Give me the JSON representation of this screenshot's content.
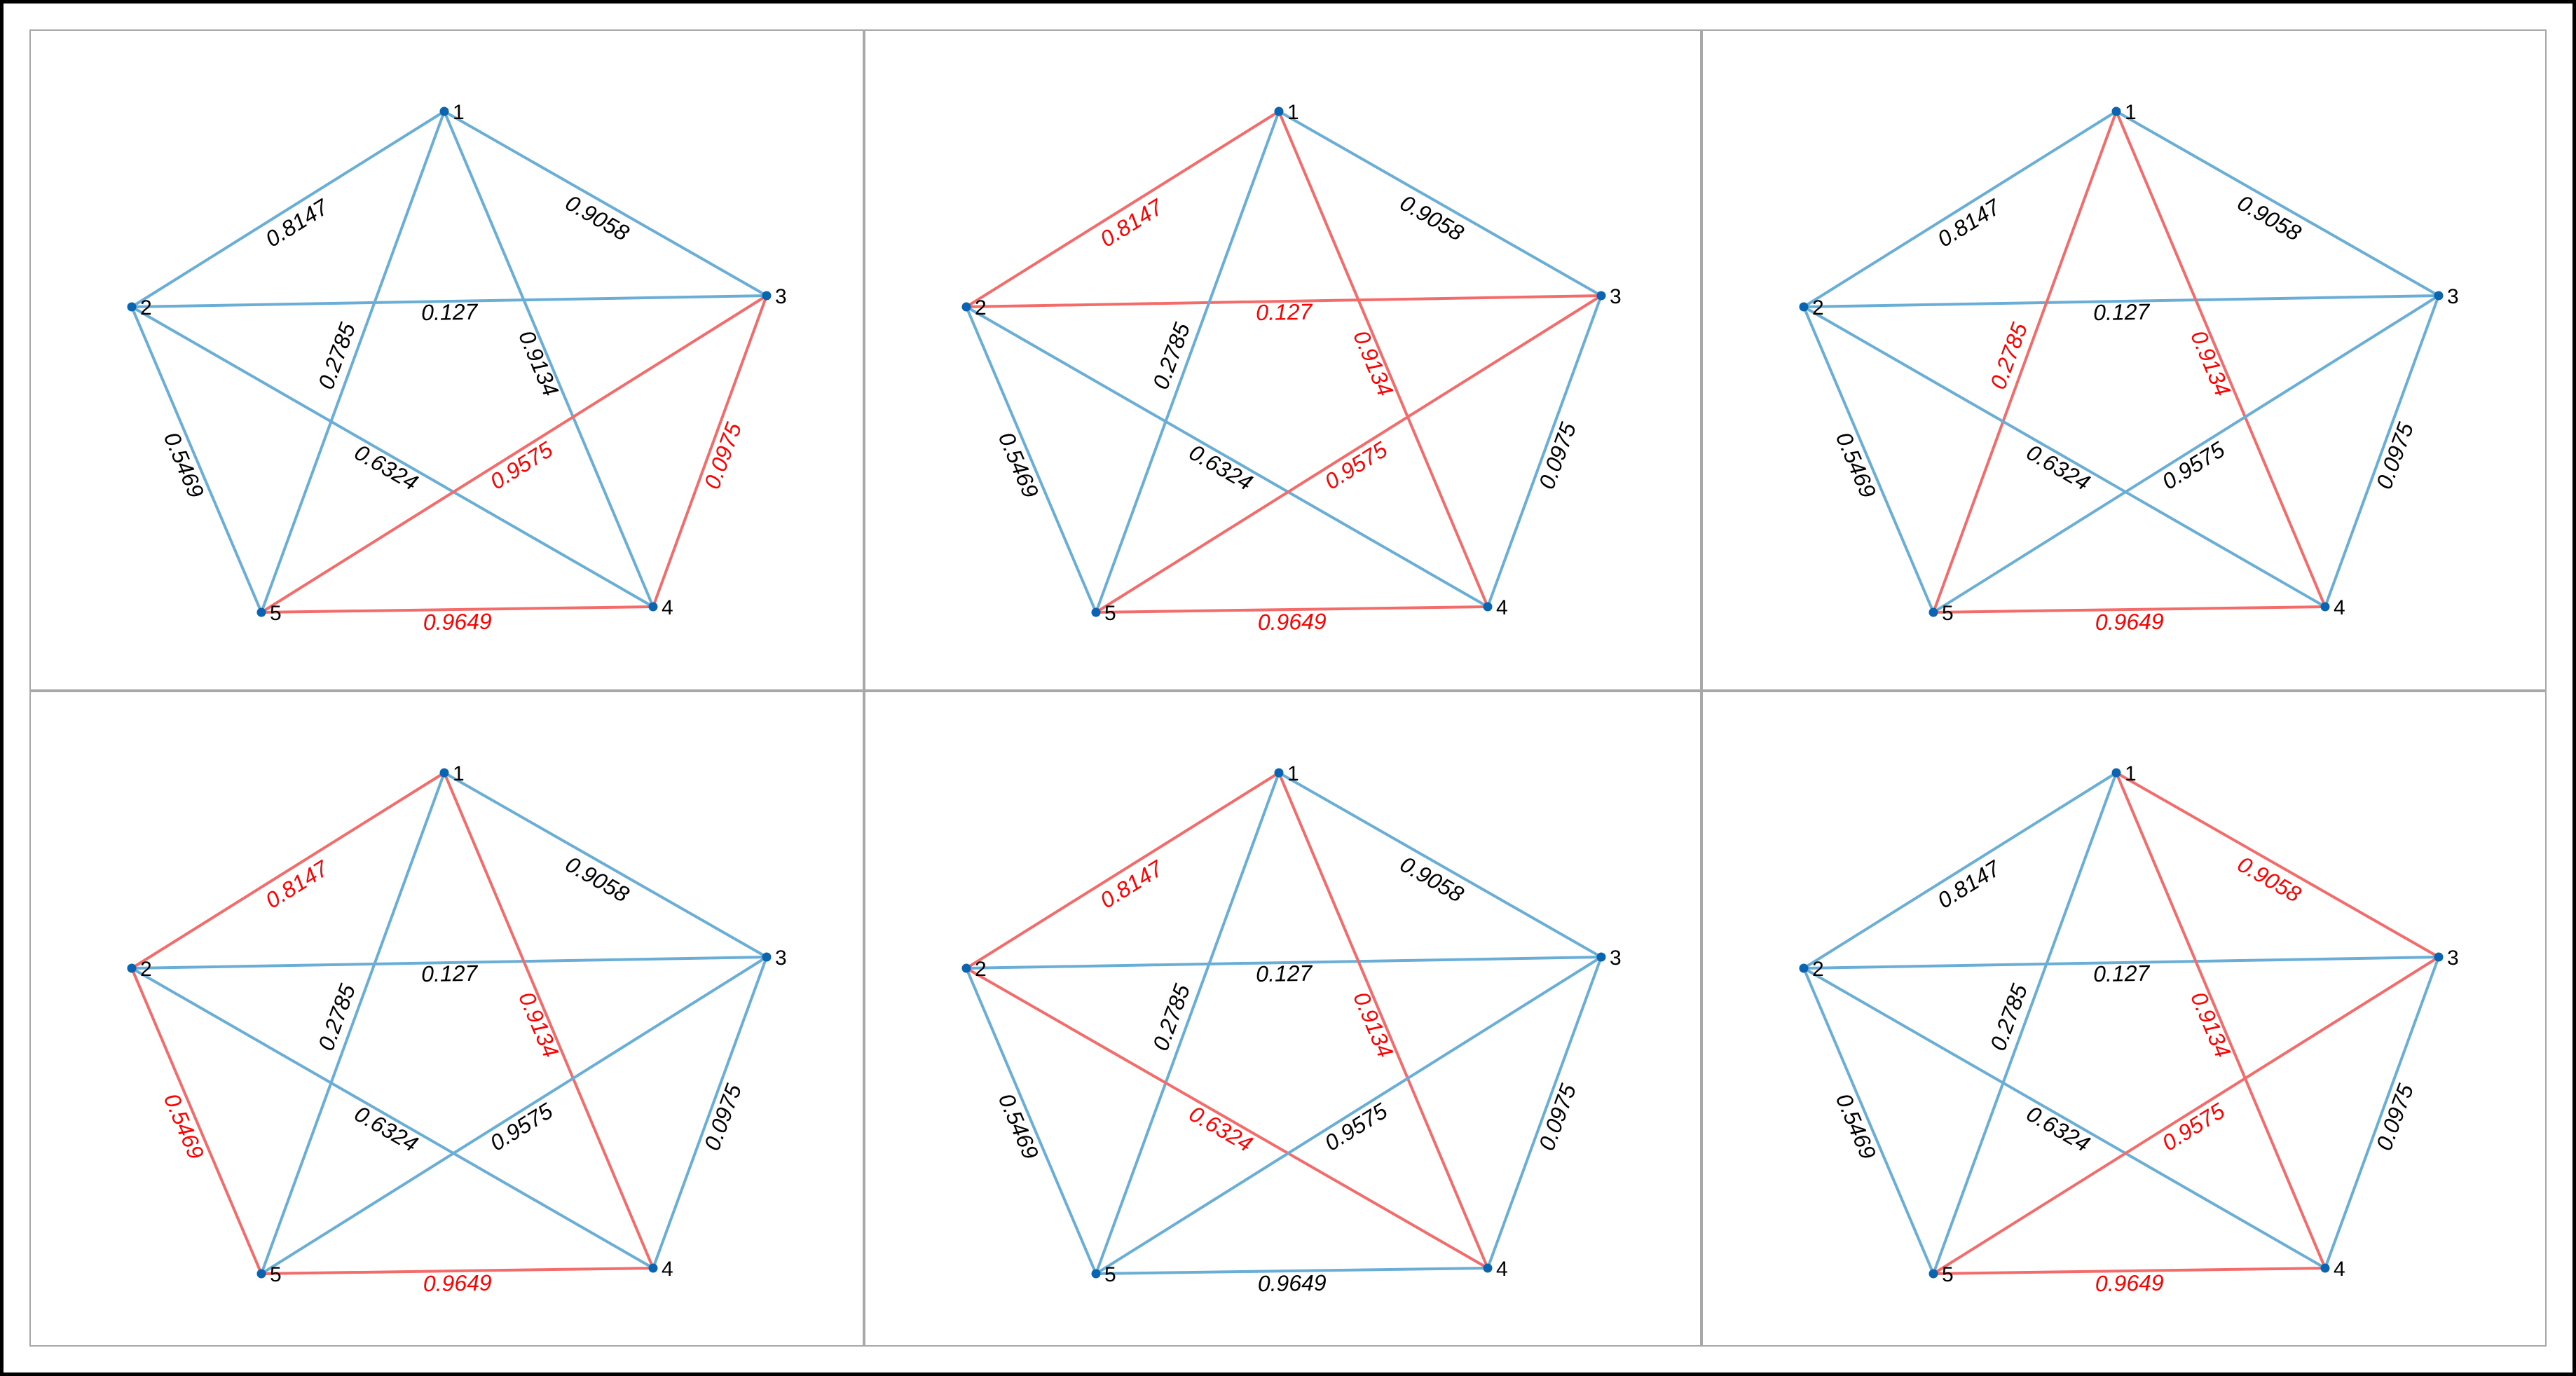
{
  "colors": {
    "default_edge": "#6aaed6",
    "highlight_edge": "#f36c6c",
    "default_label": "#000000",
    "highlight_label": "#ff0000",
    "node": "#0b64b0"
  },
  "nodes": [
    "1",
    "2",
    "3",
    "4",
    "5"
  ],
  "edges": [
    {
      "id": "1-2",
      "from": "1",
      "to": "2",
      "weight": "0.8147"
    },
    {
      "id": "1-3",
      "from": "1",
      "to": "3",
      "weight": "0.9058"
    },
    {
      "id": "2-3",
      "from": "2",
      "to": "3",
      "weight": "0.127"
    },
    {
      "id": "1-4",
      "from": "1",
      "to": "4",
      "weight": "0.9134"
    },
    {
      "id": "1-5",
      "from": "1",
      "to": "5",
      "weight": "0.2785"
    },
    {
      "id": "2-5",
      "from": "2",
      "to": "5",
      "weight": "0.5469"
    },
    {
      "id": "2-4",
      "from": "2",
      "to": "4",
      "weight": "0.6324"
    },
    {
      "id": "3-5",
      "from": "3",
      "to": "5",
      "weight": "0.9575"
    },
    {
      "id": "3-4",
      "from": "3",
      "to": "4",
      "weight": "0.0975"
    },
    {
      "id": "4-5",
      "from": "4",
      "to": "5",
      "weight": "0.9649"
    }
  ],
  "panels": [
    {
      "highlighted": [
        "3-5",
        "3-4",
        "4-5"
      ]
    },
    {
      "highlighted": [
        "1-2",
        "2-3",
        "1-4",
        "3-5",
        "4-5"
      ]
    },
    {
      "highlighted": [
        "1-4",
        "1-5",
        "4-5"
      ]
    },
    {
      "highlighted": [
        "1-2",
        "1-4",
        "2-5",
        "4-5"
      ]
    },
    {
      "highlighted": [
        "1-2",
        "1-4",
        "2-4"
      ]
    },
    {
      "highlighted": [
        "1-3",
        "1-4",
        "3-5",
        "4-5"
      ]
    }
  ]
}
